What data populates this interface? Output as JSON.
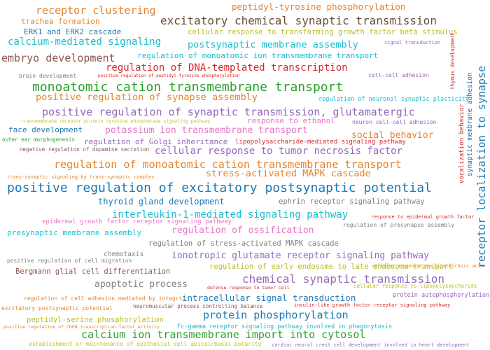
{
  "words": [
    {
      "text": "receptor clustering",
      "color": "#e6832a"
    },
    {
      "text": "peptidyl-tyrosine phosphorylation",
      "color": "#e6832a"
    },
    {
      "text": "trachea formation",
      "color": "#e6832a"
    },
    {
      "text": "excitatory chemical synaptic transmission",
      "color": "#6b4c3b"
    },
    {
      "text": "ERK1 and ERK2 cascade",
      "color": "#1f77b4"
    },
    {
      "text": "cellular response to transforming growth factor beta stimulus",
      "color": "#bcbd22"
    },
    {
      "text": "calcium-mediated signaling",
      "color": "#17becf"
    },
    {
      "text": "postsynaptic membrane assembly",
      "color": "#17becf"
    },
    {
      "text": "embryo development",
      "color": "#8c564b"
    },
    {
      "text": "regulation of monoatomic ion transmembrane transport",
      "color": "#17becf"
    },
    {
      "text": "regulation of DNA-templated transcription",
      "color": "#d62728"
    },
    {
      "text": "brain development",
      "color": "#7f7f7f"
    },
    {
      "text": "positive regulation of peptidyl-tyrosine phosphorylation",
      "color": "#d62728"
    },
    {
      "text": "cell-cell adhesion",
      "color": "#9467bd"
    },
    {
      "text": "monoatomic cation transmembrane transport",
      "color": "#2ca02c"
    },
    {
      "text": "positive regulation of synapse assembly",
      "color": "#e6832a"
    },
    {
      "text": "regulation of neuronal synaptic plasticity",
      "color": "#17becf"
    },
    {
      "text": "positive regulation of synaptic transmission, glutamatergic",
      "color": "#9467bd"
    },
    {
      "text": "transmembrane receptor protein tyrosine phosphatase signaling pathway",
      "color": "#bcbd22"
    },
    {
      "text": "response to ethanol",
      "color": "#e377c2"
    },
    {
      "text": "neuron cell-cell adhesion",
      "color": "#9467bd"
    },
    {
      "text": "face development",
      "color": "#1f77b4"
    },
    {
      "text": "potassium ion transmembrane transport",
      "color": "#e377c2"
    },
    {
      "text": "social behavior",
      "color": "#e6832a"
    },
    {
      "text": "outer ear morphogenesis",
      "color": "#2ca02c"
    },
    {
      "text": "regulation of Golgi inheritance",
      "color": "#9467bd"
    },
    {
      "text": "lipopolysaccharide-mediated signaling pathway",
      "color": "#d62728"
    },
    {
      "text": "negative regulation of dopamine secretion",
      "color": "#8c564b"
    },
    {
      "text": "cellular response to tumor necrosis factor",
      "color": "#9467bd"
    },
    {
      "text": "regulation of monoatomic cation transmembrane transport",
      "color": "#e6832a"
    },
    {
      "text": "trans-synaptic signaling by trans-synaptic complex",
      "color": "#e6832a"
    },
    {
      "text": "stress-activated MAPK cascade",
      "color": "#e6832a"
    },
    {
      "text": "positive regulation of excitatory postsynaptic potential",
      "color": "#1f77b4"
    },
    {
      "text": "thyroid gland development",
      "color": "#1f77b4"
    },
    {
      "text": "ephrin receptor signaling pathway",
      "color": "#7f7f7f"
    },
    {
      "text": "interleukin-1-mediated signaling pathway",
      "color": "#17becf"
    },
    {
      "text": "epidermal growth factor receptor signaling pathway",
      "color": "#e377c2"
    },
    {
      "text": "response to epidermal growth factor",
      "color": "#d62728"
    },
    {
      "text": "presynaptic membrane assembly",
      "color": "#17becf"
    },
    {
      "text": "regulation of ossification",
      "color": "#e377c2"
    },
    {
      "text": "regulation of presynapse assembly",
      "color": "#7f7f7f"
    },
    {
      "text": "regulation of stress-activated MAPK cascade",
      "color": "#7f7f7f"
    },
    {
      "text": "chemotaxis",
      "color": "#7f7f7f"
    },
    {
      "text": "positive regulation of cell migration",
      "color": "#7f7f7f"
    },
    {
      "text": "ionotropic glutamate receptor signaling pathway",
      "color": "#9467bd"
    },
    {
      "text": "cellular response to lipoteichoic acid",
      "color": "#e6832a"
    },
    {
      "text": "Bergmann glial cell differentiation",
      "color": "#8c564b"
    },
    {
      "text": "regulation of early endosome to late endosome transport",
      "color": "#bcbd22"
    },
    {
      "text": "chemical synaptic transmission",
      "color": "#9467bd"
    },
    {
      "text": "apoptotic process",
      "color": "#7f7f7f"
    },
    {
      "text": "defense response to tumor cell",
      "color": "#d62728"
    },
    {
      "text": "cellular response to lipopolysaccharide",
      "color": "#bcbd22"
    },
    {
      "text": "intracellular signal transduction",
      "color": "#1f77b4"
    },
    {
      "text": "regulation of cell adhesion mediated by integrin",
      "color": "#e6832a"
    },
    {
      "text": "excitatory postsynaptic potential",
      "color": "#e6832a"
    },
    {
      "text": "neuromuscular process controlling balance",
      "color": "#8c564b"
    },
    {
      "text": "insulin-like growth factor receptor signaling pathway",
      "color": "#d62728"
    },
    {
      "text": "protein phosphorylation",
      "color": "#1f77b4"
    },
    {
      "text": "peptidyl-serine phosphorylation",
      "color": "#bcbd22"
    },
    {
      "text": "protein autophosphorylation",
      "color": "#9467bd"
    },
    {
      "text": "positive regulation of CREB transcription factor activity",
      "color": "#e6832a"
    },
    {
      "text": "Fc-gamma receptor signaling pathway involved in phagocytosis",
      "color": "#17becf"
    },
    {
      "text": "calcium ion transmembrane import into cytosol",
      "color": "#2ca02c"
    },
    {
      "text": "establishment or maintenance of epithelial cell apical/basal polarity",
      "color": "#bcbd22"
    },
    {
      "text": "cardiac neural crest cell development involved in heart development",
      "color": "#9467bd"
    },
    {
      "text": "signal transduction",
      "color": "#9467bd"
    },
    {
      "text": "receptor localization to synapse",
      "color": "#1f77b4"
    },
    {
      "text": "synaptic membrane adhesion",
      "color": "#1f77b4"
    },
    {
      "text": "vocalization behavior",
      "color": "#d62728"
    },
    {
      "text": "thymus development",
      "color": "#d62728"
    }
  ]
}
